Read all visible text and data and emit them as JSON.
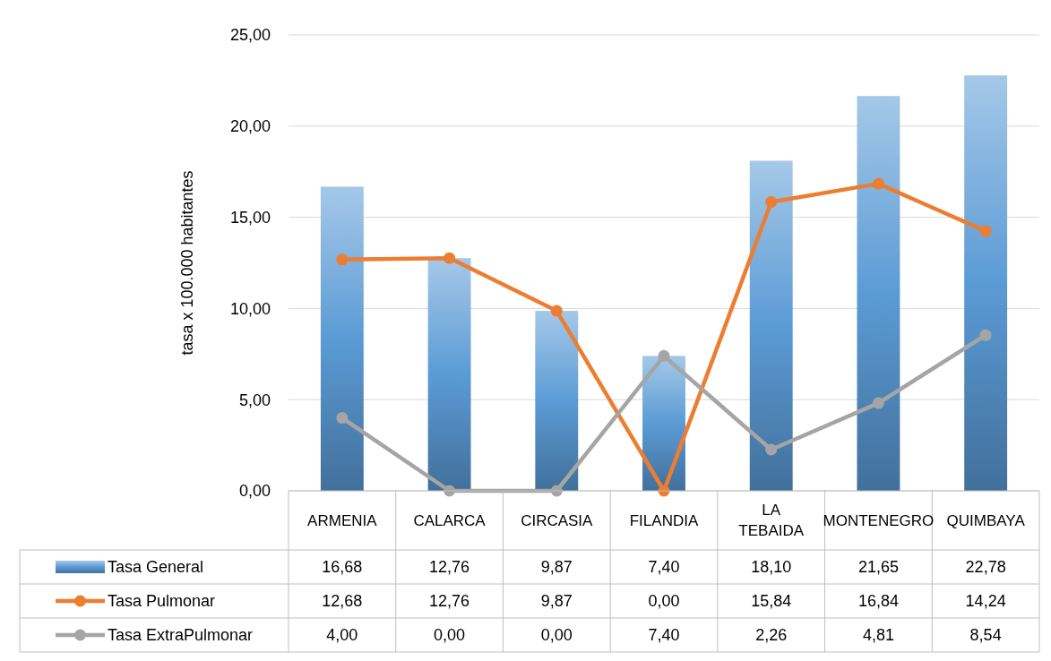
{
  "chart_data": {
    "type": "bar",
    "ylabel": "tasa x 100.000 habitantes",
    "categories": [
      "ARMENIA",
      "CALARCA",
      "CIRCASIA",
      "FILANDIA",
      "LA TEBAIDA",
      "MONTENEGRO",
      "QUIMBAYA"
    ],
    "series": [
      {
        "name": "Tasa General",
        "color": "#5b9bd5",
        "values": [
          16.68,
          12.76,
          9.87,
          7.4,
          18.1,
          21.65,
          22.78
        ],
        "value_labels": [
          "16,68",
          "12,76",
          "9,87",
          "7,40",
          "18,10",
          "21,65",
          "22,78"
        ]
      },
      {
        "name": "Tasa Pulmonar",
        "type": "line",
        "color": "#ed7d31",
        "values": [
          12.68,
          12.76,
          9.87,
          0.0,
          15.84,
          16.84,
          14.24
        ],
        "value_labels": [
          "12,68",
          "12,76",
          "9,87",
          "0,00",
          "15,84",
          "16,84",
          "14,24"
        ]
      },
      {
        "name": "Tasa ExtraPulmonar",
        "type": "line",
        "color": "#a5a5a5",
        "values": [
          4.0,
          0.0,
          0.0,
          7.4,
          2.26,
          4.81,
          8.54
        ],
        "value_labels": [
          "4,00",
          "0,00",
          "0,00",
          "7,40",
          "2,26",
          "4,81",
          "8,54"
        ]
      }
    ],
    "ylim": [
      0,
      25
    ],
    "yticks": [
      {
        "value": 0,
        "label": "0,00"
      },
      {
        "value": 5,
        "label": "5,00"
      },
      {
        "value": 10,
        "label": "10,00"
      },
      {
        "value": 15,
        "label": "15,00"
      },
      {
        "value": 20,
        "label": "20,00"
      },
      {
        "value": 25,
        "label": "25,00"
      }
    ],
    "grid": "y",
    "legend": "bottom",
    "marker": "circle",
    "line_style": "solid"
  }
}
